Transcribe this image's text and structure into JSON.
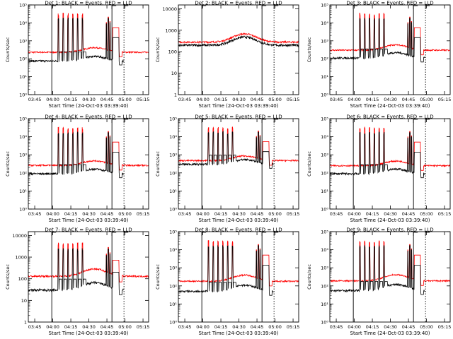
{
  "common": {
    "xlabel": "Start Time (24-Oct-03 03:39:40)",
    "ylabel": "Counts/sec",
    "x_ticks": [
      "03:45",
      "04:00",
      "04:15",
      "04:30",
      "04:45",
      "05:00",
      "05:15"
    ],
    "x_start": "03:39:40",
    "x_range_minutes": [
      0,
      100
    ],
    "x_tick_minutes": [
      5.33,
      20.33,
      35.33,
      50.33,
      65.33,
      80.33,
      95.33
    ],
    "y_scale": "log",
    "solid_vlines_minutes": [
      19.5,
      69.5
    ],
    "dotted_vline_minutes": 79.5,
    "colors": {
      "black_series": "#000000",
      "red_series": "#ff0000",
      "axes": "#000000"
    }
  },
  "chart_data": [
    {
      "type": "line",
      "title": "Det 1: BLACK = Events, RED = LLD",
      "ylim": [
        1,
        100000
      ],
      "y_ticks": [
        "10⁰",
        "10¹",
        "10²",
        "10³",
        "10⁴",
        "10⁵"
      ],
      "black_base": 75,
      "red_base": 230,
      "peak_height": 30000,
      "hump": 0.2,
      "spike_step": 2,
      "series": [
        {
          "name": "BLACK = Events"
        },
        {
          "name": "RED = LLD"
        }
      ]
    },
    {
      "type": "line",
      "title": "Det 2: BLACK = Events, RED = LLD",
      "ylim": [
        1,
        15000
      ],
      "y_ticks": [
        "1",
        "10",
        "100",
        "1000",
        "10000"
      ],
      "black_base": 200,
      "red_base": 280,
      "peak_height": 0,
      "hump": 0.35,
      "spike_step": 0,
      "series": [
        {
          "name": "BLACK = Events"
        },
        {
          "name": "RED = LLD"
        }
      ]
    },
    {
      "type": "line",
      "title": "Det 3: BLACK = Events, RED = LLD",
      "ylim": [
        1,
        100000
      ],
      "y_ticks": [
        "10⁰",
        "10¹",
        "10²",
        "10³",
        "10⁴",
        "10⁵"
      ],
      "black_base": 110,
      "red_base": 300,
      "peak_height": 30000,
      "hump": 0.25,
      "spike_step": 2,
      "series": [
        {
          "name": "BLACK = Events"
        },
        {
          "name": "RED = LLD"
        }
      ]
    },
    {
      "type": "line",
      "title": "Det 4: BLACK = Events, RED = LLD",
      "ylim": [
        1,
        100000
      ],
      "y_ticks": [
        "10⁰",
        "10¹",
        "10²",
        "10³",
        "10⁴",
        "10⁵"
      ],
      "black_base": 90,
      "red_base": 260,
      "peak_height": 28000,
      "hump": 0.2,
      "spike_step": 2,
      "series": [
        {
          "name": "BLACK = Events"
        },
        {
          "name": "RED = LLD"
        }
      ]
    },
    {
      "type": "line",
      "title": "Det 5: BLACK = Events, RED = LLD",
      "ylim": [
        1,
        100000
      ],
      "y_ticks": [
        "10⁰",
        "10¹",
        "10²",
        "10³",
        "10⁴",
        "10⁵"
      ],
      "black_base": 300,
      "red_base": 480,
      "peak_height": 30000,
      "hump": 0.2,
      "spike_step": 2,
      "series": [
        {
          "name": "BLACK = Events"
        },
        {
          "name": "RED = LLD"
        }
      ]
    },
    {
      "type": "line",
      "title": "Det 6: BLACK = Events, RED = LLD",
      "ylim": [
        1,
        100000
      ],
      "y_ticks": [
        "10⁰",
        "10¹",
        "10²",
        "10³",
        "10⁴",
        "10⁵"
      ],
      "black_base": 90,
      "red_base": 250,
      "peak_height": 28000,
      "hump": 0.2,
      "spike_step": 2,
      "series": [
        {
          "name": "BLACK = Events"
        },
        {
          "name": "RED = LLD"
        }
      ]
    },
    {
      "type": "line",
      "title": "Det 7: BLACK = Events, RED = LLD",
      "ylim": [
        1,
        15000
      ],
      "y_ticks": [
        "1",
        "10",
        "100",
        "1000",
        "10000"
      ],
      "black_base": 30,
      "red_base": 130,
      "peak_height": 4000,
      "hump": 0.3,
      "spike_step": 2,
      "series": [
        {
          "name": "BLACK = Events"
        },
        {
          "name": "RED = LLD"
        }
      ]
    },
    {
      "type": "line",
      "title": "Det 8: BLACK = Events, RED = LLD",
      "ylim": [
        1,
        100000
      ],
      "y_ticks": [
        "10⁰",
        "10¹",
        "10²",
        "10³",
        "10⁴",
        "10⁵"
      ],
      "black_base": 50,
      "red_base": 180,
      "peak_height": 28000,
      "hump": 0.3,
      "spike_step": 2,
      "series": [
        {
          "name": "BLACK = Events"
        },
        {
          "name": "RED = LLD"
        }
      ]
    },
    {
      "type": "line",
      "title": "Det 9: BLACK = Events, RED = LLD",
      "ylim": [
        1,
        100000
      ],
      "y_ticks": [
        "10⁰",
        "10¹",
        "10²",
        "10³",
        "10⁴",
        "10⁵"
      ],
      "black_base": 55,
      "red_base": 190,
      "peak_height": 28000,
      "hump": 0.3,
      "spike_step": 2,
      "series": [
        {
          "name": "BLACK = Events"
        },
        {
          "name": "RED = LLD"
        }
      ]
    }
  ]
}
